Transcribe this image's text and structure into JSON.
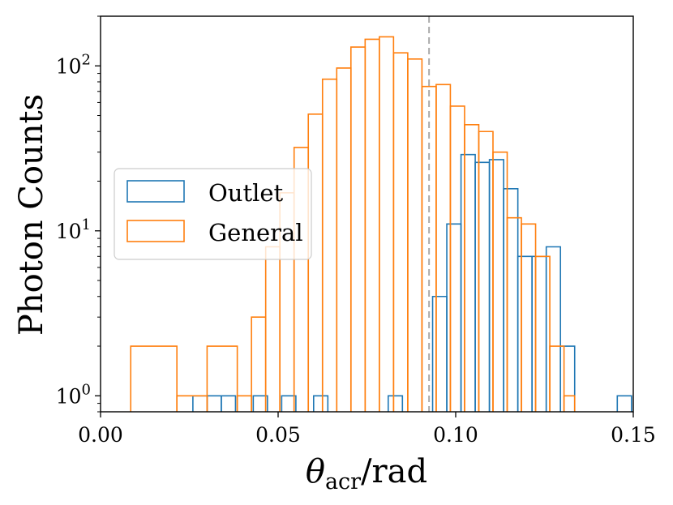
{
  "chart_data": {
    "type": "histogram",
    "title": "",
    "xlabel": {
      "symbol": "θ",
      "subscript": "acr",
      "unit": "/rad"
    },
    "ylabel": "Photon Counts",
    "yscale": "log",
    "xlim": [
      0.0,
      0.15
    ],
    "ylim": [
      0.8,
      200
    ],
    "x_ticks": [
      {
        "value": 0.0,
        "label": "0.00"
      },
      {
        "value": 0.05,
        "label": "0.05"
      },
      {
        "value": 0.1,
        "label": "0.10"
      },
      {
        "value": 0.15,
        "label": "0.15"
      }
    ],
    "y_ticks": [
      {
        "value": 1,
        "base": "10",
        "exp": "0"
      },
      {
        "value": 10,
        "base": "10",
        "exp": "1"
      },
      {
        "value": 100,
        "base": "10",
        "exp": "2"
      }
    ],
    "reference_line": {
      "x": 0.0925,
      "color": "#aaaaaa",
      "style": "dashed"
    },
    "legend": {
      "position": "center-left"
    },
    "series": [
      {
        "name": "Outlet",
        "color": "#1f77b4",
        "bin_width": 0.004,
        "bins": [
          {
            "x0": 0.026,
            "x1": 0.03,
            "count": 1
          },
          {
            "x0": 0.03,
            "x1": 0.034,
            "count": 1
          },
          {
            "x0": 0.034,
            "x1": 0.038,
            "count": 1
          },
          {
            "x0": 0.043,
            "x1": 0.047,
            "count": 1
          },
          {
            "x0": 0.051,
            "x1": 0.055,
            "count": 1
          },
          {
            "x0": 0.06,
            "x1": 0.064,
            "count": 1
          },
          {
            "x0": 0.081,
            "x1": 0.085,
            "count": 1
          },
          {
            "x0": 0.0935,
            "x1": 0.0975,
            "count": 4
          },
          {
            "x0": 0.0975,
            "x1": 0.1015,
            "count": 11
          },
          {
            "x0": 0.1015,
            "x1": 0.1055,
            "count": 29
          },
          {
            "x0": 0.1055,
            "x1": 0.1095,
            "count": 26
          },
          {
            "x0": 0.1095,
            "x1": 0.1135,
            "count": 27
          },
          {
            "x0": 0.1135,
            "x1": 0.1175,
            "count": 18
          },
          {
            "x0": 0.1175,
            "x1": 0.1215,
            "count": 7
          },
          {
            "x0": 0.1215,
            "x1": 0.1255,
            "count": 7
          },
          {
            "x0": 0.1255,
            "x1": 0.1295,
            "count": 8
          },
          {
            "x0": 0.1295,
            "x1": 0.1335,
            "count": 2
          },
          {
            "x0": 0.1455,
            "x1": 0.1495,
            "count": 1
          }
        ]
      },
      {
        "name": "General",
        "color": "#ff7f0e",
        "bin_width": 0.004,
        "bins": [
          {
            "x0": 0.0085,
            "x1": 0.0215,
            "count": 2
          },
          {
            "x0": 0.0215,
            "x1": 0.03,
            "count": 1
          },
          {
            "x0": 0.03,
            "x1": 0.0385,
            "count": 2
          },
          {
            "x0": 0.0385,
            "x1": 0.0425,
            "count": 1
          },
          {
            "x0": 0.0425,
            "x1": 0.0465,
            "count": 3
          },
          {
            "x0": 0.0465,
            "x1": 0.0505,
            "count": 8
          },
          {
            "x0": 0.0505,
            "x1": 0.0545,
            "count": 17
          },
          {
            "x0": 0.0545,
            "x1": 0.0585,
            "count": 32
          },
          {
            "x0": 0.0585,
            "x1": 0.0625,
            "count": 51
          },
          {
            "x0": 0.0625,
            "x1": 0.0665,
            "count": 83
          },
          {
            "x0": 0.0665,
            "x1": 0.0705,
            "count": 97
          },
          {
            "x0": 0.0705,
            "x1": 0.0745,
            "count": 130
          },
          {
            "x0": 0.0745,
            "x1": 0.0785,
            "count": 145
          },
          {
            "x0": 0.0785,
            "x1": 0.0825,
            "count": 150
          },
          {
            "x0": 0.0825,
            "x1": 0.0865,
            "count": 120
          },
          {
            "x0": 0.0865,
            "x1": 0.0905,
            "count": 110
          },
          {
            "x0": 0.0905,
            "x1": 0.0945,
            "count": 75
          },
          {
            "x0": 0.0945,
            "x1": 0.0985,
            "count": 77
          },
          {
            "x0": 0.0985,
            "x1": 0.1025,
            "count": 57
          },
          {
            "x0": 0.1025,
            "x1": 0.1065,
            "count": 44
          },
          {
            "x0": 0.1065,
            "x1": 0.1105,
            "count": 40
          },
          {
            "x0": 0.1105,
            "x1": 0.1145,
            "count": 30
          },
          {
            "x0": 0.1145,
            "x1": 0.1185,
            "count": 12
          },
          {
            "x0": 0.1185,
            "x1": 0.1225,
            "count": 11
          },
          {
            "x0": 0.1225,
            "x1": 0.1265,
            "count": 7
          },
          {
            "x0": 0.1265,
            "x1": 0.1305,
            "count": 2
          },
          {
            "x0": 0.1305,
            "x1": 0.1335,
            "count": 1
          }
        ]
      }
    ]
  }
}
